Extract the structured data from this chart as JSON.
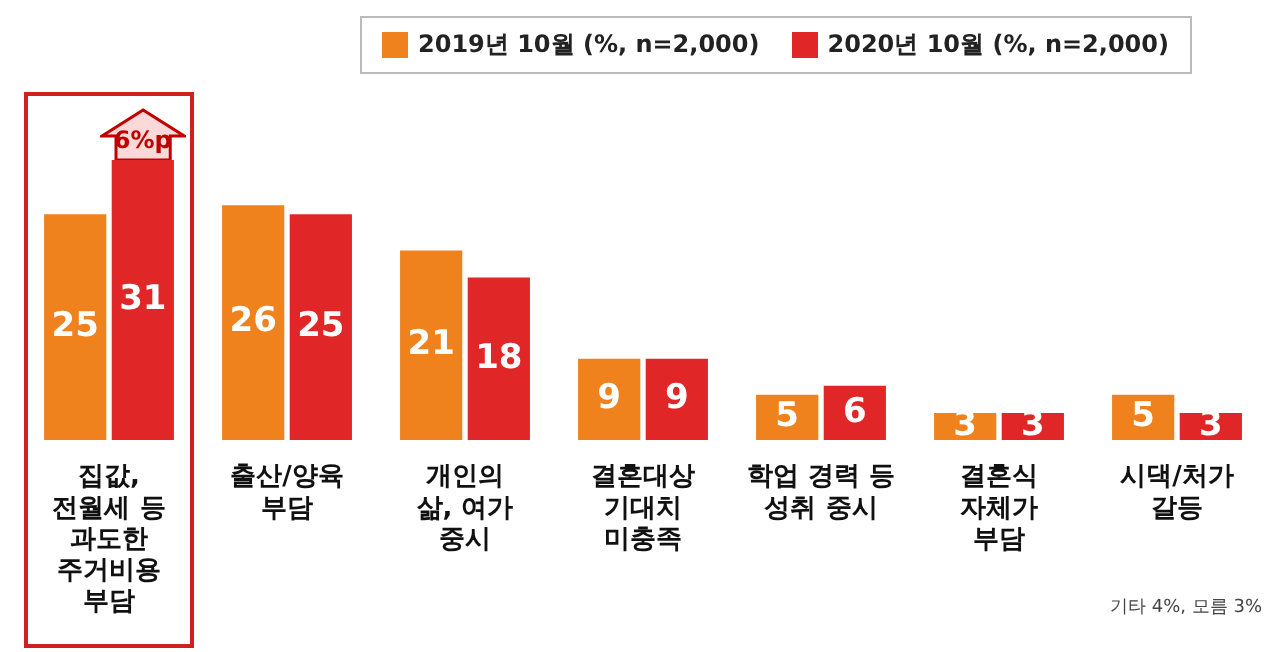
{
  "chart_data": {
    "type": "bar",
    "categories": [
      "집값,\n전월세 등\n과도한\n주거비용\n부담",
      "출산/양육\n부담",
      "개인의\n삶, 여가\n중시",
      "결혼대상\n기대치\n미충족",
      "학업 경력 등\n성취 중시",
      "결혼식\n자체가\n부담",
      "시댁/처가\n갈등"
    ],
    "series": [
      {
        "name": "2019년 10월 (%, n=2,000)",
        "color": "#f0821e",
        "values": [
          25,
          26,
          21,
          9,
          5,
          3,
          5
        ]
      },
      {
        "name": "2020년 10월 (%, n=2,000)",
        "color": "#e02626",
        "values": [
          31,
          25,
          18,
          9,
          6,
          3,
          3
        ]
      }
    ],
    "data_labels": true,
    "grid": false,
    "legend": "top",
    "tick_labels": "x",
    "annotations": [
      {
        "text": "6%p",
        "x": "집값,\n전월세 등\n과도한\n주거비용\n부담",
        "y": 31
      },
      "기타 4%, 모름 3%"
    ]
  }
}
